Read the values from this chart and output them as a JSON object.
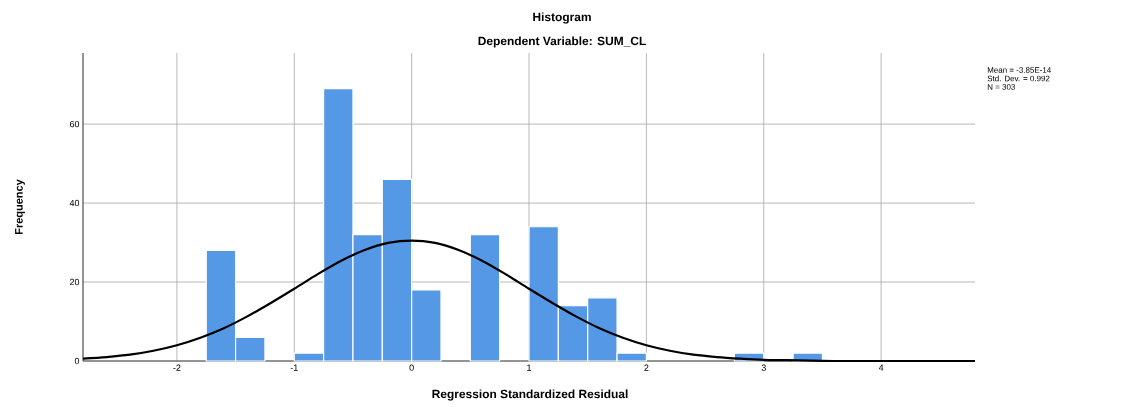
{
  "chart_data": {
    "type": "histogram",
    "title": "Histogram",
    "subtitle": "Dependent Variable: SUM_CL",
    "xlabel": "Regression Standardized Residual",
    "ylabel": "Frequency",
    "bins": [
      -1.75,
      -1.5,
      -1.25,
      -1.0,
      -0.75,
      -0.5,
      -0.25,
      0,
      0.25,
      0.5,
      0.75,
      1.0,
      1.25,
      1.5,
      1.75,
      2.0,
      2.25,
      2.5,
      2.75,
      3.0,
      3.25,
      3.5
    ],
    "values": [
      28,
      6,
      0,
      2,
      69,
      32,
      46,
      18,
      0,
      32,
      0,
      34,
      14,
      16,
      2,
      0,
      0,
      0,
      2,
      0,
      2
    ],
    "color": "#5599e6",
    "series": [
      {
        "type": "line",
        "color": "#000000",
        "x": [
          -2.8,
          -2.6,
          -2.4,
          -2.2,
          -2.0,
          -1.8,
          -1.6,
          -1.4,
          -1.2,
          -1.0,
          -0.8,
          -0.6,
          -0.4,
          -0.2,
          0,
          0.2,
          0.4,
          0.6,
          0.8,
          1.0,
          1.2,
          1.4,
          1.6,
          1.8,
          2.0,
          2.2,
          2.4,
          2.6,
          2.8,
          3.0,
          3.2,
          3.4,
          3.6,
          3.8,
          4.0,
          4.4,
          4.8
        ],
        "values": [
          0.6,
          1.0,
          1.6,
          2.6,
          4.0,
          5.9,
          8.3,
          11.3,
          14.7,
          18.3,
          22.0,
          25.4,
          28.1,
          29.9,
          30.5,
          29.9,
          28.1,
          25.4,
          22.0,
          18.3,
          14.7,
          11.3,
          8.3,
          5.9,
          4.0,
          2.6,
          1.6,
          1.0,
          0.6,
          0.3,
          0.2,
          0.1,
          0,
          0,
          0,
          0,
          0
        ]
      }
    ],
    "xlim": [
      -2.8,
      4.8
    ],
    "ylim": [
      0,
      78
    ],
    "xticks": [
      -2,
      -1,
      0,
      1,
      2,
      3,
      4
    ],
    "yticks": [
      0,
      20,
      40,
      60
    ],
    "grid": true,
    "annotations": [
      "Mean = -3.85E-14",
      "Std. Dev. = 0.992",
      "N = 303"
    ]
  }
}
